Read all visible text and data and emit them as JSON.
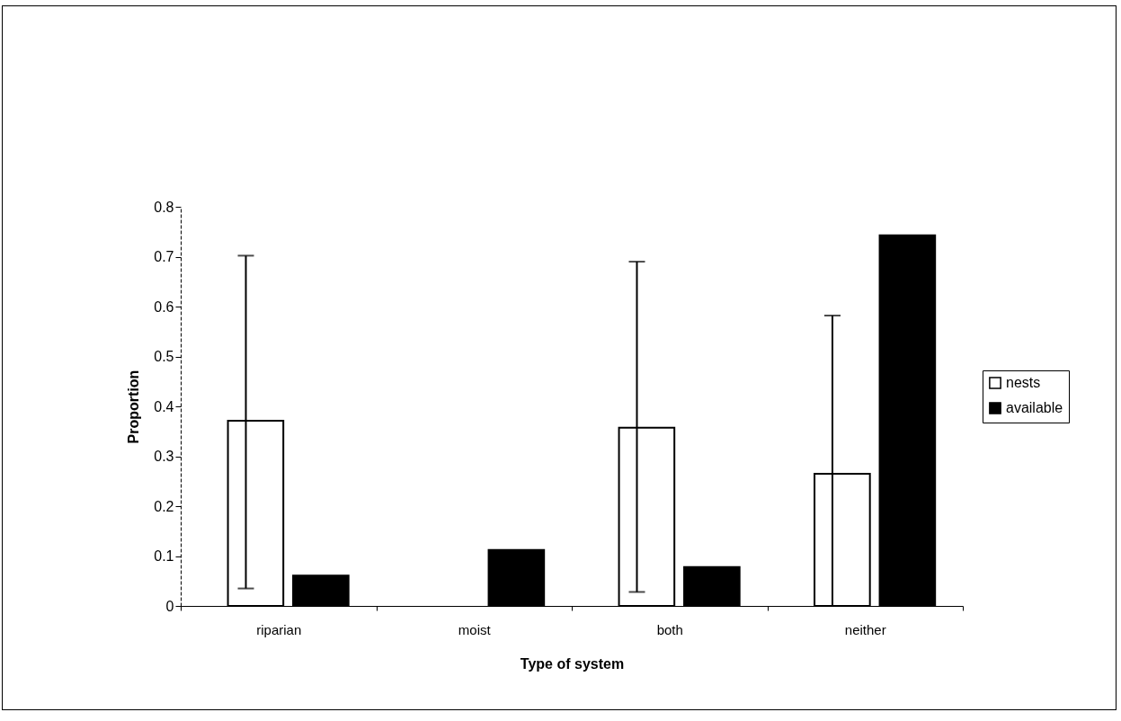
{
  "chart_data": {
    "type": "bar",
    "xlabel": "Type of system",
    "ylabel": "Proportion",
    "categories": [
      "riparian",
      "moist",
      "both",
      "neither"
    ],
    "series": [
      {
        "name": "nests",
        "color": "#ffffff",
        "values": [
          0.371,
          0,
          0.357,
          0.265
        ],
        "errors": [
          [
            0.035,
            0.702
          ],
          null,
          [
            0.028,
            0.69
          ],
          [
            0,
            0.582
          ]
        ]
      },
      {
        "name": "available",
        "color": "#000000",
        "values": [
          0.061,
          0.112,
          0.078,
          0.743
        ]
      }
    ],
    "ylim": [
      0,
      0.8
    ],
    "yticks": [
      0,
      0.1,
      0.2,
      0.3,
      0.4,
      0.5,
      0.6,
      0.7,
      0.8
    ],
    "grid": false,
    "legend": "right"
  }
}
